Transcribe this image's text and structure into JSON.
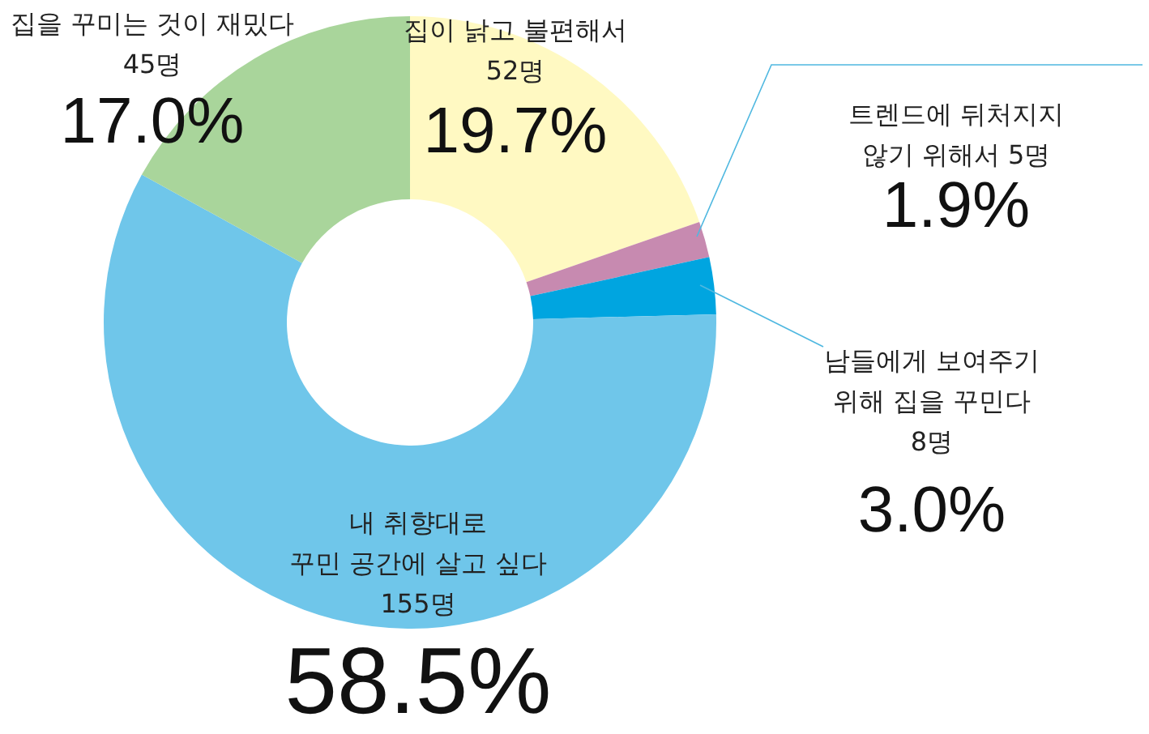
{
  "chart_data": {
    "type": "donut",
    "categories": [
      "집이 낡고 불편해서 52명",
      "트렌드에 뒤처지지 않기 위해서 5명",
      "남들에게 보여주기 위해 집을 꾸민다 8명",
      "내 취향대로 꾸민 공간에 살고 싶다 155명",
      "집을 꾸미는 것이 재밌다 45명"
    ],
    "values": [
      19.7,
      1.9,
      3.0,
      58.5,
      17.0
    ],
    "value_labels": [
      "19.7%",
      "1.9%",
      "3.0%",
      "58.5%",
      "17.0%"
    ],
    "colors": [
      "#fff9c2",
      "#c78ab0",
      "#00a5e0",
      "#6fc6ea",
      "#a9d59b"
    ]
  }
}
